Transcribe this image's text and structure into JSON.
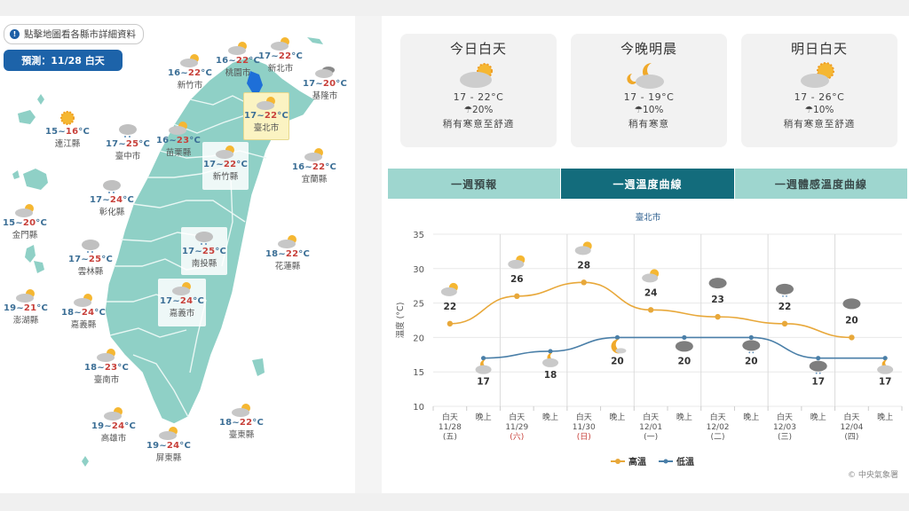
{
  "map_panel": {
    "info_button_icon": "info-icon",
    "info_button_label": "點擊地圖看各縣市詳細資料",
    "forecast_label": "預測：11/28 白天",
    "colors": {
      "land": "#8fd0c6",
      "low_temp": "#3c6f96",
      "high_temp": "#c8413b",
      "selected_bg": "#fbf3c2",
      "taipei_highlight": "#1e6fd8"
    },
    "cities": [
      {
        "name": "新竹市",
        "low": "16",
        "high": "22",
        "icon": "partly-cloudy-icon"
      },
      {
        "name": "桃園市",
        "low": "16",
        "high": "22",
        "icon": "partly-cloudy-icon"
      },
      {
        "name": "新北市",
        "low": "17",
        "high": "22",
        "icon": "partly-cloudy-icon"
      },
      {
        "name": "基隆市",
        "low": "17",
        "high": "20",
        "icon": "cloudy-icon"
      },
      {
        "name": "臺北市",
        "low": "17",
        "high": "22",
        "icon": "partly-cloudy-icon",
        "selected": true
      },
      {
        "name": "連江縣",
        "low": "15",
        "high": "16",
        "icon": "sunny-icon"
      },
      {
        "name": "臺中市",
        "low": "17",
        "high": "25",
        "icon": "rain-icon"
      },
      {
        "name": "苗栗縣",
        "low": "16",
        "high": "23",
        "icon": "partly-cloudy-icon"
      },
      {
        "name": "新竹縣",
        "low": "17",
        "high": "22",
        "icon": "partly-cloudy-icon"
      },
      {
        "name": "宜蘭縣",
        "low": "16",
        "high": "22",
        "icon": "partly-cloudy-icon"
      },
      {
        "name": "彰化縣",
        "low": "17",
        "high": "24",
        "icon": "rain-icon"
      },
      {
        "name": "金門縣",
        "low": "15",
        "high": "20",
        "icon": "partly-cloudy-icon"
      },
      {
        "name": "南投縣",
        "low": "17",
        "high": "25",
        "icon": "rain-icon"
      },
      {
        "name": "雲林縣",
        "low": "17",
        "high": "25",
        "icon": "rain-icon"
      },
      {
        "name": "花蓮縣",
        "low": "18",
        "high": "22",
        "icon": "partly-cloudy-icon"
      },
      {
        "name": "澎湖縣",
        "low": "19",
        "high": "21",
        "icon": "partly-cloudy-icon"
      },
      {
        "name": "嘉義縣",
        "low": "18",
        "high": "24",
        "icon": "partly-cloudy-icon"
      },
      {
        "name": "嘉義市",
        "low": "17",
        "high": "24",
        "icon": "partly-cloudy-icon"
      },
      {
        "name": "臺南市",
        "low": "18",
        "high": "23",
        "icon": "partly-cloudy-icon"
      },
      {
        "name": "高雄市",
        "low": "19",
        "high": "24",
        "icon": "partly-cloudy-icon"
      },
      {
        "name": "臺東縣",
        "low": "18",
        "high": "22",
        "icon": "partly-cloudy-icon"
      },
      {
        "name": "屏東縣",
        "low": "19",
        "high": "24",
        "icon": "partly-cloudy-icon"
      }
    ],
    "unit": "°C",
    "separator": "~"
  },
  "summary_cards": [
    {
      "title": "今日白天",
      "icon": "partly-cloudy-day-icon",
      "range": "17 - 22°C",
      "rain_icon": "umbrella-icon",
      "rain": "20%",
      "desc": "稍有寒意至舒適"
    },
    {
      "title": "今晚明晨",
      "icon": "partly-cloudy-night-icon",
      "range": "17 - 19°C",
      "rain_icon": "umbrella-icon",
      "rain": "10%",
      "desc": "稍有寒意"
    },
    {
      "title": "明日白天",
      "icon": "partly-cloudy-day-icon",
      "range": "17 - 26°C",
      "rain_icon": "umbrella-icon",
      "rain": "10%",
      "desc": "稍有寒意至舒適"
    }
  ],
  "tabs": [
    {
      "label": "一週預報",
      "active": false
    },
    {
      "label": "一週溫度曲線",
      "active": true
    },
    {
      "label": "一週體感溫度曲線",
      "active": false
    }
  ],
  "chart_city": "臺北市",
  "legend": {
    "high": "高溫",
    "low": "低溫"
  },
  "credit": "© 中央氣象署",
  "chart_data": {
    "type": "line",
    "title": "臺北市",
    "xlabel": "",
    "ylabel": "溫度 (°C)",
    "ylim": [
      10,
      35
    ],
    "yticks": [
      10,
      15,
      20,
      25,
      30,
      35
    ],
    "grid": true,
    "legend_position": "bottom",
    "categories": [
      {
        "period": "白天",
        "date": "11/28",
        "weekday": "(五)"
      },
      {
        "period": "晚上"
      },
      {
        "period": "白天",
        "date": "11/29",
        "weekday": "(六)"
      },
      {
        "period": "晚上"
      },
      {
        "period": "白天",
        "date": "11/30",
        "weekday": "(日)"
      },
      {
        "period": "晚上"
      },
      {
        "period": "白天",
        "date": "12/01",
        "weekday": "(一)"
      },
      {
        "period": "晚上"
      },
      {
        "period": "白天",
        "date": "12/02",
        "weekday": "(二)"
      },
      {
        "period": "晚上"
      },
      {
        "period": "白天",
        "date": "12/03",
        "weekday": "(三)"
      },
      {
        "period": "晚上"
      },
      {
        "period": "白天",
        "date": "12/04",
        "weekday": "(四)"
      },
      {
        "period": "晚上"
      }
    ],
    "series": [
      {
        "name": "高溫",
        "color": "#e8a83a",
        "slots": [
          0,
          2,
          4,
          6,
          8,
          10,
          12
        ],
        "values": [
          22,
          26,
          28,
          24,
          23,
          22,
          20
        ],
        "icons": [
          "partly-cloudy-icon",
          "partly-cloudy-icon",
          "partly-cloudy-icon",
          "partly-cloudy-icon",
          "cloudy-icon",
          "rain-icon",
          "cloudy-icon"
        ]
      },
      {
        "name": "低溫",
        "color": "#4a7fa8",
        "slots": [
          1,
          3,
          5,
          7,
          9,
          11,
          13
        ],
        "values": [
          17,
          18,
          20,
          20,
          20,
          17,
          17
        ],
        "icons": [
          "partly-cloudy-night-icon",
          "partly-cloudy-night-icon",
          "moon-icon",
          "cloudy-icon",
          "rain-icon",
          "rain-icon",
          "partly-cloudy-night-icon"
        ]
      }
    ]
  }
}
